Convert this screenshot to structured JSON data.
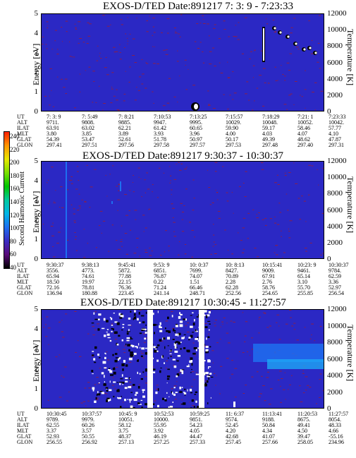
{
  "colors": {
    "background_field": "#2b28c4",
    "noise": "#8a1f4a",
    "hot_feature": "#ffffff",
    "dark_feature": "#000000",
    "blue_feature": "#1e6ff0"
  },
  "colorbar": {
    "label": "Second Harmonic Current",
    "ticks": [
      "40",
      "60",
      "80",
      "100",
      "120",
      "140",
      "160",
      "180",
      "200",
      "220",
      "240"
    ],
    "stops": [
      "#000000",
      "#5a0a7a",
      "#3a2cc4",
      "#1e6ff0",
      "#00b6e6",
      "#00c9a0",
      "#00c600",
      "#7be000",
      "#e8e800",
      "#ff9600",
      "#ff2000"
    ]
  },
  "ephem_labels": [
    "UT",
    "ALT",
    "ILAT",
    "MLT",
    "GLAT",
    "GLON"
  ],
  "chart_data": [
    {
      "type": "heatmap",
      "title": "EXOS-D/TED   Date:891217   7: 3: 9 - 7:23:33",
      "ylabel": "Energy [eV]",
      "ylabel_right": "Temperature [K]",
      "ylim": [
        0,
        5
      ],
      "ylim_right": [
        0,
        12000
      ],
      "yticks": [
        "0",
        "1",
        "2",
        "3",
        "4",
        "5"
      ],
      "yticks_right": [
        "0",
        "2000",
        "4000",
        "6000",
        "8000",
        "10000",
        "12000"
      ],
      "ephemeris": [
        [
          "7: 3: 9",
          "9711.",
          "63.91",
          "3.80",
          "54.39",
          "297.41"
        ],
        [
          "7: 5:49",
          "9808.",
          "63.02",
          "3.85",
          "53.47",
          "297.51"
        ],
        [
          "7: 8:21",
          "9885.",
          "62.21",
          "3.89",
          "52.61",
          "297.56"
        ],
        [
          "7:10:53",
          "9947.",
          "61.42",
          "3.93",
          "51.78",
          "297.58"
        ],
        [
          "7:13:25",
          "9995.",
          "60.65",
          "3.96",
          "50.97",
          "297.57"
        ],
        [
          "7:15:57",
          "10029.",
          "59.90",
          "4.00",
          "50.17",
          "297.53"
        ],
        [
          "7:18:29",
          "10048.",
          "59.17",
          "4.03",
          "49.39",
          "297.48"
        ],
        [
          "7:21: 1",
          "10052.",
          "58.46",
          "4.07",
          "48.62",
          "297.40"
        ],
        [
          "7:23:33",
          "10042.",
          "57.77",
          "4.10",
          "47.87",
          "297.31"
        ]
      ]
    },
    {
      "type": "heatmap",
      "title": "EXOS-D/TED   Date:891217   9:30:37 - 10:30:37",
      "ylabel": "Energy [eV]",
      "ylabel_right": "Temperature [K]",
      "ylim": [
        0,
        5
      ],
      "ylim_right": [
        0,
        12000
      ],
      "yticks": [
        "0",
        "1",
        "2",
        "3",
        "4",
        "5"
      ],
      "yticks_right": [
        "0",
        "2000",
        "4000",
        "6000",
        "8000",
        "10000",
        "12000"
      ],
      "ephemeris": [
        [
          "9:30:37",
          "3556.",
          "65.94",
          "18.50",
          "72.16",
          "136.94"
        ],
        [
          "9:38:13",
          "4773.",
          "74.61",
          "19.97",
          "78.81",
          "180.88"
        ],
        [
          "9:45:41",
          "5872.",
          "77.88",
          "22.15",
          "76.36",
          "223.45"
        ],
        [
          "9:53: 9",
          "6851.",
          "76.87",
          "0.22",
          "71.24",
          "241.14"
        ],
        [
          "10: 0:37",
          "7699.",
          "74.07",
          "1.51",
          "66.46",
          "248.71"
        ],
        [
          "10: 8:13",
          "8427.",
          "70.89",
          "2.28",
          "62.28",
          "252.56"
        ],
        [
          "10:15:41",
          "9009.",
          "67.91",
          "2.76",
          "58.76",
          "254.65"
        ],
        [
          "10:23: 9",
          "9461.",
          "65.14",
          "3.10",
          "55.70",
          "255.85"
        ],
        [
          "10:30:37",
          "9784.",
          "62.59",
          "3.36",
          "52.97",
          "256.54"
        ]
      ]
    },
    {
      "type": "heatmap",
      "title": "EXOS-D/TED   Date:891217   10:30:45 - 11:27:57",
      "ylabel": "Energy [eV]",
      "ylabel_right": "Temperature [K]",
      "ylim": [
        0,
        5
      ],
      "ylim_right": [
        0,
        12000
      ],
      "yticks": [
        "0",
        "1",
        "2",
        "3",
        "4",
        "5"
      ],
      "yticks_right": [
        "0",
        "2000",
        "4000",
        "6000",
        "8000",
        "10000",
        "12000"
      ],
      "ephemeris": [
        [
          "10:30:45",
          "9789.",
          "62.55",
          "3.37",
          "52.93",
          "256.55"
        ],
        [
          "10:37:57",
          "9979.",
          "60.26",
          "3.57",
          "50.55",
          "256.92"
        ],
        [
          "10:45: 9",
          "10051.",
          "58.12",
          "3.75",
          "48.37",
          "257.13"
        ],
        [
          "10:52:53",
          "10000.",
          "55.95",
          "3.92",
          "46.19",
          "257.25"
        ],
        [
          "10:59:25",
          "9851.",
          "54.23",
          "4.05",
          "44.47",
          "257.33"
        ],
        [
          "11: 6:37",
          "9574.",
          "52.45",
          "4.20",
          "42.68",
          "257.45"
        ],
        [
          "11:13:41",
          "9188.",
          "50.84",
          "4.34",
          "41.07",
          "257.66"
        ],
        [
          "11:20:53",
          "8675.",
          "49.41",
          "4.50",
          "39.47",
          "258.05"
        ],
        [
          "11:27:57",
          "8054.",
          "48.33",
          "4.66",
          "-55.16",
          "234.96"
        ]
      ]
    }
  ]
}
